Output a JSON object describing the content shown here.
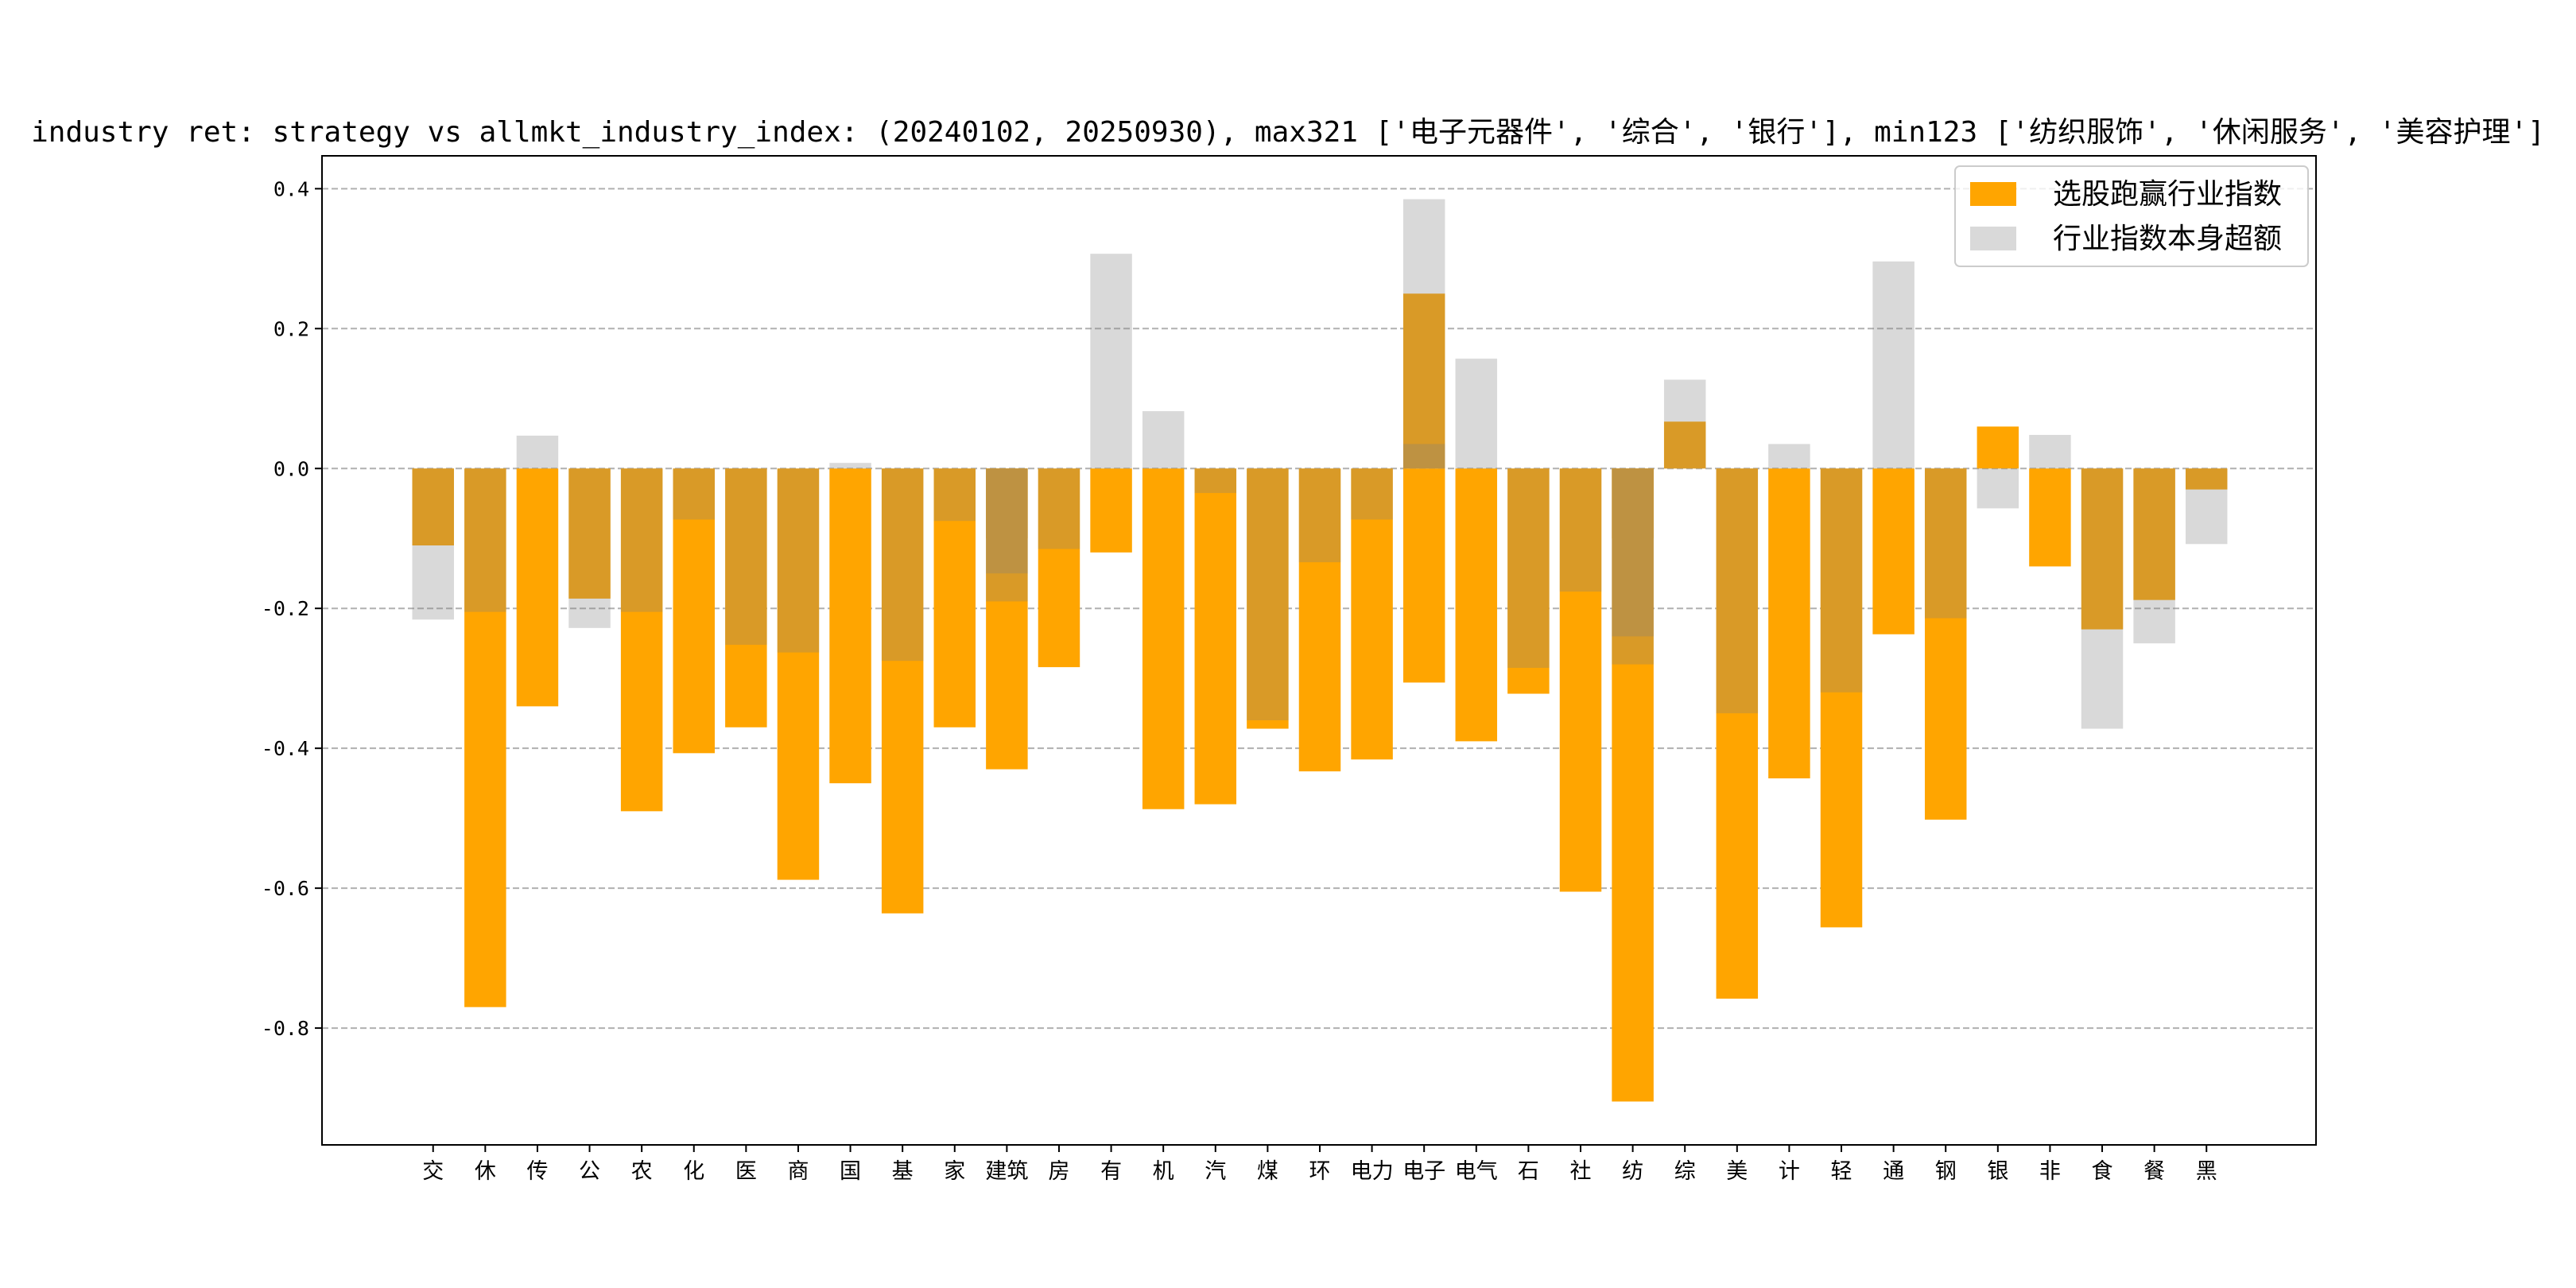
{
  "chart_data": {
    "type": "bar",
    "title": "industry ret: strategy vs allmkt_industry_index: (20240102, 20250930), max321 ['电子元器件', '综合', '银行'], min123 ['纺织服饰', '休闲服务', '美容护理']",
    "xlabel": "",
    "ylabel": "",
    "ylim": [
      -0.967,
      0.447
    ],
    "xlim": [
      -2.13,
      36.1
    ],
    "grid": "horizontal dashed",
    "legend_placement": "top-right",
    "yticks": [
      0.4,
      0.2,
      0.0,
      -0.2,
      -0.4,
      -0.6,
      -0.8
    ],
    "ytick_labels": [
      "0.4",
      "0.2",
      "0.0",
      "-0.2",
      "-0.4",
      "-0.6",
      "-0.8"
    ],
    "categories": [
      "交",
      "休",
      "传",
      "公",
      "农",
      "化",
      "医",
      "商",
      "国",
      "基",
      "家",
      "建筑",
      "房",
      "有",
      "机",
      "汽",
      "煤",
      "环",
      "电力",
      "电子",
      "电气",
      "石",
      "社",
      "纺",
      "综",
      "美",
      "计",
      "轻",
      "通",
      "钢",
      "银",
      "非",
      "食",
      "餐",
      "黑"
    ],
    "series": [
      {
        "key": "strategy",
        "name": "选股跑赢行业指数",
        "color": "#ffa500"
      },
      {
        "key": "industry",
        "name": "行业指数本身超额",
        "color": "#808080"
      }
    ],
    "bars": [
      {
        "category": "交",
        "strategy": -0.11,
        "industry": -0.216
      },
      {
        "category": "休",
        "strategy": -0.77,
        "industry": -0.205
      },
      {
        "category": "传",
        "strategy": -0.34,
        "industry": 0.047
      },
      {
        "category": "公",
        "strategy": -0.186,
        "industry": -0.228
      },
      {
        "category": "农",
        "strategy": -0.49,
        "industry": -0.205
      },
      {
        "category": "化",
        "strategy": -0.407,
        "industry": -0.073
      },
      {
        "category": "医",
        "strategy": -0.37,
        "industry": -0.252
      },
      {
        "category": "商",
        "strategy": -0.588,
        "industry": -0.263
      },
      {
        "category": "国",
        "strategy": -0.45,
        "industry": 0.008
      },
      {
        "category": "基",
        "strategy": -0.636,
        "industry": -0.275
      },
      {
        "category": "家",
        "strategy": -0.37,
        "industry": -0.075
      },
      {
        "category": "建筑",
        "strategy": -0.43,
        "industry": -0.19
      },
      {
        "category": "建筑",
        "strategy": -0.1,
        "industry": -0.15
      },
      {
        "category": "房",
        "strategy": -0.284,
        "industry": -0.115
      },
      {
        "category": "有",
        "strategy": -0.12,
        "industry": 0.307
      },
      {
        "category": "机",
        "strategy": -0.487,
        "industry": 0.082
      },
      {
        "category": "汽",
        "strategy": -0.48,
        "industry": -0.035
      },
      {
        "category": "煤",
        "strategy": -0.372,
        "industry": -0.36
      },
      {
        "category": "环",
        "strategy": -0.433,
        "industry": -0.134
      },
      {
        "category": "电力",
        "strategy": -0.416,
        "industry": -0.073
      },
      {
        "category": "电子",
        "strategy": 0.25,
        "industry": 0.385
      },
      {
        "category": "电子",
        "strategy": -0.306,
        "industry": 0.035
      },
      {
        "category": "电气",
        "strategy": -0.39,
        "industry": 0.157
      },
      {
        "category": "石",
        "strategy": -0.322,
        "industry": -0.285
      },
      {
        "category": "社",
        "strategy": -0.605,
        "industry": -0.176
      },
      {
        "category": "纺",
        "strategy": -0.905,
        "industry": -0.28
      },
      {
        "category": "纺",
        "strategy": -0.1,
        "industry": -0.24
      },
      {
        "category": "综",
        "strategy": 0.067,
        "industry": 0.127
      },
      {
        "category": "美",
        "strategy": -0.758,
        "industry": -0.35
      },
      {
        "category": "计",
        "strategy": -0.443,
        "industry": 0.035
      },
      {
        "category": "轻",
        "strategy": -0.656,
        "industry": -0.32
      },
      {
        "category": "通",
        "strategy": -0.237,
        "industry": 0.296
      },
      {
        "category": "钢",
        "strategy": -0.502,
        "industry": -0.214
      },
      {
        "category": "银",
        "strategy": 0.06,
        "industry": -0.057
      },
      {
        "category": "非",
        "strategy": -0.14,
        "industry": 0.048
      },
      {
        "category": "食",
        "strategy": -0.23,
        "industry": -0.372
      },
      {
        "category": "餐",
        "strategy": -0.188,
        "industry": -0.25
      },
      {
        "category": "黑",
        "strategy": -0.03,
        "industry": -0.108
      }
    ]
  }
}
